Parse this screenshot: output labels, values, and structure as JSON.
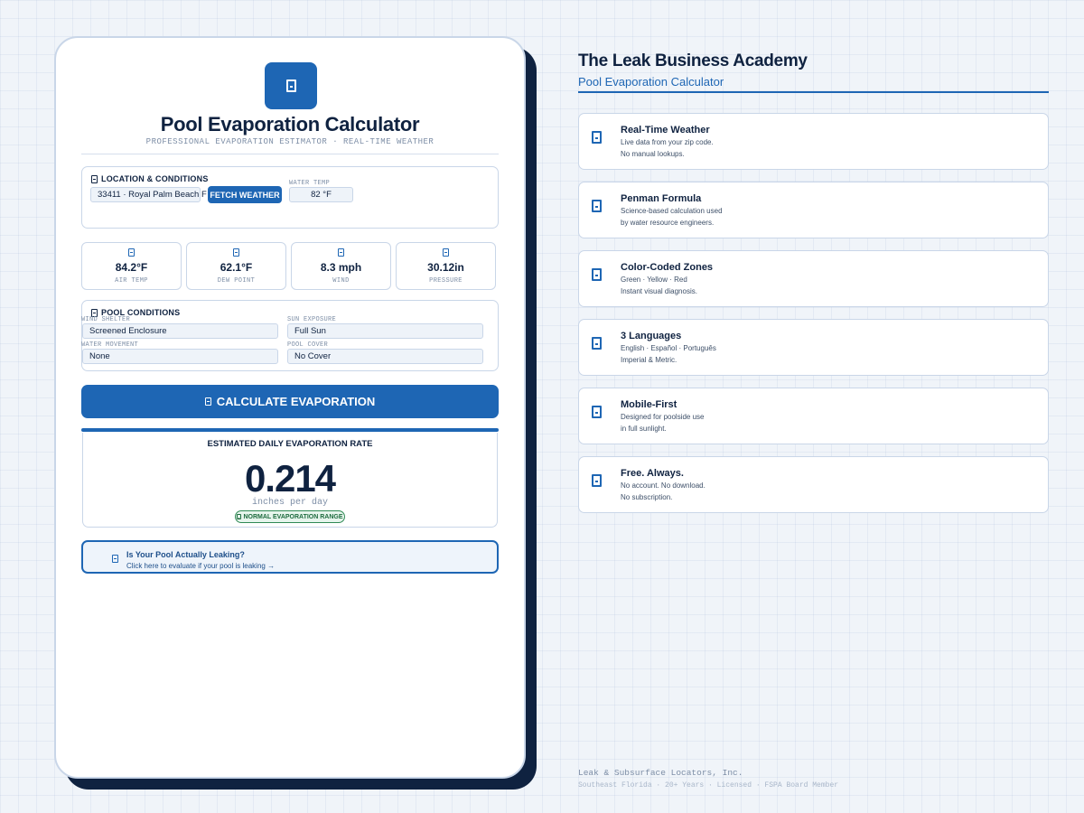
{
  "calculator": {
    "title": "Pool Evaporation Calculator",
    "subtitle": "PROFESSIONAL EVAPORATION ESTIMATOR · REAL-TIME WEATHER",
    "location_panel": {
      "label": "LOCATION & CONDITIONS",
      "location_value": "33411 · Royal Palm Beach F",
      "fetch_label": "FETCH WEATHER",
      "water_temp_label": "WATER TEMP",
      "water_temp_value": "82 °F"
    },
    "stats": [
      {
        "value": "84.2°F",
        "label": "AIR TEMP"
      },
      {
        "value": "62.1°F",
        "label": "DEW POINT"
      },
      {
        "value": "8.3 mph",
        "label": "WIND"
      },
      {
        "value": "30.12in",
        "label": "PRESSURE"
      }
    ],
    "pool_panel": {
      "label": "POOL CONDITIONS",
      "wind_shelter_label": "WIND SHELTER",
      "wind_shelter_value": "Screened Enclosure",
      "sun_exposure_label": "SUN EXPOSURE",
      "sun_exposure_value": "Full Sun",
      "water_movement_label": "WATER MOVEMENT",
      "water_movement_value": "None",
      "pool_cover_label": "POOL COVER",
      "pool_cover_value": "No Cover"
    },
    "calculate_label": "CALCULATE EVAPORATION",
    "result": {
      "heading": "ESTIMATED DAILY EVAPORATION RATE",
      "value": "0.214",
      "unit": "inches per day",
      "badge": "NORMAL EVAPORATION RANGE"
    },
    "leak_card": {
      "title": "Is Your Pool Actually Leaking?",
      "subtitle": "Click here to evaluate if your pool is leaking →"
    }
  },
  "brand": {
    "title": "The Leak Business Academy",
    "subtitle": "Pool Evaporation Calculator"
  },
  "features": [
    {
      "title": "Real-Time Weather",
      "line1": "Live data from your zip code.",
      "line2": "No manual lookups."
    },
    {
      "title": "Penman Formula",
      "line1": "Science-based calculation used",
      "line2": "by water resource engineers."
    },
    {
      "title": "Color-Coded Zones",
      "line1": "Green · Yellow · Red",
      "line2": "Instant visual diagnosis."
    },
    {
      "title": "3 Languages",
      "line1": "English · Español · Português",
      "line2": "Imperial & Metric."
    },
    {
      "title": "Mobile-First",
      "line1": "Designed for poolside use",
      "line2": "in full sunlight."
    },
    {
      "title": "Free. Always.",
      "line1": "No account. No download.",
      "line2": "No subscription."
    }
  ],
  "footer": {
    "company": "Leak & Subsurface Locators, Inc.",
    "details": "Southeast Florida · 20+ Years · Licensed · FSPA Board Member"
  },
  "colors": {
    "primary": "#1e66b4",
    "navy": "#0f2240",
    "success": "#2f8a55"
  }
}
